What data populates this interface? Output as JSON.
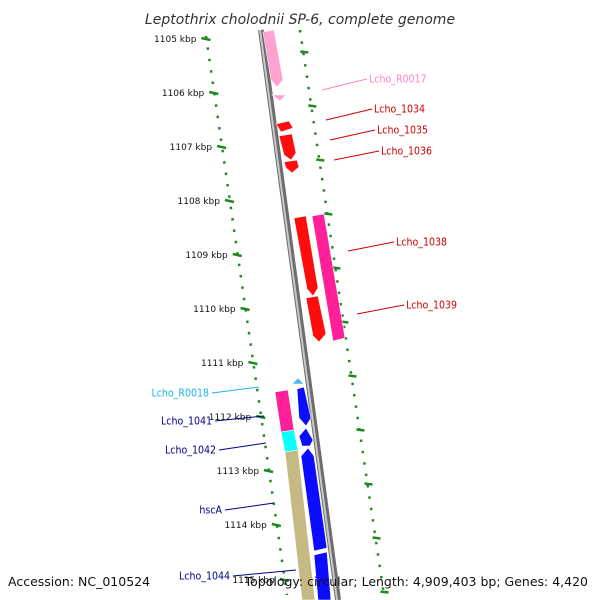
{
  "title": "Leptothrix cholodnii SP-6, complete genome",
  "footer": {
    "accession": "Accession: NC_010524",
    "topology": "Topology: circular; Length: 4,909,403 bp; Genes: 4,420"
  },
  "colors": {
    "backbone": "#8a8a8a",
    "ruler": "#1e8a1e",
    "red_gene": "#ff0000",
    "magenta_gene": "#ff1493",
    "pink_gene": "#ff9ccf",
    "blue_gene": "#0000ff",
    "cyan_gene": "#00ffff",
    "khaki_gene": "#c4b67e",
    "sky_gene": "#48b4f0"
  },
  "scale": {
    "tick_labels": [
      "1105 kbp",
      "1106 kbp",
      "1107 kbp",
      "1108 kbp",
      "1109 kbp",
      "1110 kbp",
      "1111 kbp",
      "1112 kbp",
      "1113 kbp",
      "1114 kbp",
      "1115 kbp"
    ]
  },
  "gene_labels": [
    {
      "text": "Lcho_R0017",
      "color": "#ff85c4"
    },
    {
      "text": "Lcho_1034",
      "color": "#cc0000"
    },
    {
      "text": "Lcho_1035",
      "color": "#cc0000"
    },
    {
      "text": "Lcho_1036",
      "color": "#cc0000"
    },
    {
      "text": "Lcho_1038",
      "color": "#cc0000"
    },
    {
      "text": "Lcho_1039",
      "color": "#cc0000"
    },
    {
      "text": "Lcho_R0018",
      "color": "#1ab6e6"
    },
    {
      "text": "Lcho_1041",
      "color": "#000088"
    },
    {
      "text": "Lcho_1042",
      "color": "#000088"
    },
    {
      "text": "hscA",
      "color": "#000088"
    },
    {
      "text": "Lcho_1044",
      "color": "#000088"
    }
  ]
}
